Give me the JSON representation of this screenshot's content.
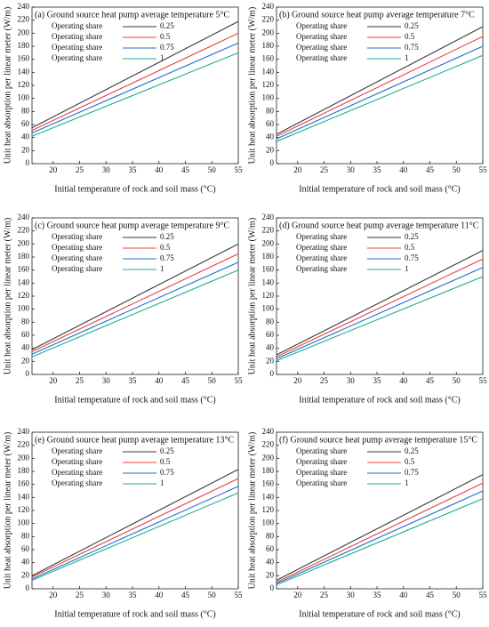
{
  "chart_data": [
    {
      "type": "line",
      "title": "(a) Ground source heat pump average temperature 5°C",
      "xlabel": "Initial temperature of rock and soil mass (°C)",
      "ylabel": "Unit heat absorption per linear meter (W/m)",
      "x": [
        16,
        55
      ],
      "xlim": [
        16,
        55
      ],
      "ylim": [
        0,
        240
      ],
      "xticks": [
        20,
        25,
        30,
        35,
        40,
        45,
        50,
        55
      ],
      "yticks": [
        0,
        20,
        40,
        60,
        80,
        100,
        120,
        140,
        160,
        180,
        200,
        220,
        240
      ],
      "series": [
        {
          "name": "Operating share",
          "share": 0.25,
          "color": "#3a3a3a",
          "values": [
            55,
            218
          ]
        },
        {
          "name": "Operating share",
          "share": 0.5,
          "color": "#e8433a",
          "values": [
            51,
            200
          ]
        },
        {
          "name": "Operating share",
          "share": 0.75,
          "color": "#1f6fd1",
          "values": [
            47,
            185
          ]
        },
        {
          "name": "Operating share",
          "share": 1,
          "color": "#1fae8a",
          "values": [
            42,
            170
          ]
        }
      ]
    },
    {
      "type": "line",
      "title": "(b) Ground source heat pump average temperature 7°C",
      "xlabel": "Initial temperature of rock and soil mass (°C)",
      "ylabel": "Unit heat absorption per linear meter (W/m)",
      "x": [
        16,
        55
      ],
      "xlim": [
        16,
        55
      ],
      "ylim": [
        0,
        240
      ],
      "xticks": [
        20,
        25,
        30,
        35,
        40,
        45,
        50,
        55
      ],
      "yticks": [
        0,
        20,
        40,
        60,
        80,
        100,
        120,
        140,
        160,
        180,
        200,
        220,
        240
      ],
      "series": [
        {
          "name": "Operating share",
          "share": 0.25,
          "color": "#3a3a3a",
          "values": [
            45,
            210
          ]
        },
        {
          "name": "Operating share",
          "share": 0.5,
          "color": "#e8433a",
          "values": [
            42,
            195
          ]
        },
        {
          "name": "Operating share",
          "share": 0.75,
          "color": "#1f6fd1",
          "values": [
            38,
            180
          ]
        },
        {
          "name": "Operating share",
          "share": 1,
          "color": "#1fae8a",
          "values": [
            34,
            166
          ]
        }
      ]
    },
    {
      "type": "line",
      "title": "(c) Ground source heat pump average temperature 9°C",
      "xlabel": "Initial temperature of rock and soil mass (°C)",
      "ylabel": "Unit heat absorption per linear meter (W/m)",
      "x": [
        16,
        55
      ],
      "xlim": [
        16,
        55
      ],
      "ylim": [
        0,
        240
      ],
      "xticks": [
        20,
        25,
        30,
        35,
        40,
        45,
        50,
        55
      ],
      "yticks": [
        0,
        20,
        40,
        60,
        80,
        100,
        120,
        140,
        160,
        180,
        200,
        220,
        240
      ],
      "series": [
        {
          "name": "Operating share",
          "share": 0.25,
          "color": "#3a3a3a",
          "values": [
            38,
            200
          ]
        },
        {
          "name": "Operating share",
          "share": 0.5,
          "color": "#e8433a",
          "values": [
            35,
            185
          ]
        },
        {
          "name": "Operating share",
          "share": 0.75,
          "color": "#1f6fd1",
          "values": [
            31,
            172
          ]
        },
        {
          "name": "Operating share",
          "share": 1,
          "color": "#1fae8a",
          "values": [
            27,
            160
          ]
        }
      ]
    },
    {
      "type": "line",
      "title": "(d) Ground source heat pump average temperature 11°C",
      "xlabel": "Initial temperature of rock and soil mass (°C)",
      "ylabel": "Unit heat absorption per linear meter (W/m)",
      "x": [
        16,
        55
      ],
      "xlim": [
        16,
        55
      ],
      "ylim": [
        0,
        240
      ],
      "xticks": [
        20,
        25,
        30,
        35,
        40,
        45,
        50,
        55
      ],
      "yticks": [
        0,
        20,
        40,
        60,
        80,
        100,
        120,
        140,
        160,
        180,
        200,
        220,
        240
      ],
      "series": [
        {
          "name": "Operating share",
          "share": 0.25,
          "color": "#3a3a3a",
          "values": [
            30,
            190
          ]
        },
        {
          "name": "Operating share",
          "share": 0.5,
          "color": "#e8433a",
          "values": [
            27,
            177
          ]
        },
        {
          "name": "Operating share",
          "share": 0.75,
          "color": "#1f6fd1",
          "values": [
            24,
            164
          ]
        },
        {
          "name": "Operating share",
          "share": 1,
          "color": "#1fae8a",
          "values": [
            21,
            150
          ]
        }
      ]
    },
    {
      "type": "line",
      "title": "(e) Ground source heat pump average temperature 13°C",
      "xlabel": "Initial temperature of rock and soil mass (°C)",
      "ylabel": "Unit heat absorption per linear meter (W/m)",
      "x": [
        16,
        55
      ],
      "xlim": [
        16,
        55
      ],
      "ylim": [
        0,
        240
      ],
      "xticks": [
        20,
        25,
        30,
        35,
        40,
        45,
        50,
        55
      ],
      "yticks": [
        0,
        20,
        40,
        60,
        80,
        100,
        120,
        140,
        160,
        180,
        200,
        220,
        240
      ],
      "series": [
        {
          "name": "Operating share",
          "share": 0.25,
          "color": "#3a3a3a",
          "values": [
            20,
            183
          ]
        },
        {
          "name": "Operating share",
          "share": 0.5,
          "color": "#e8433a",
          "values": [
            18,
            169
          ]
        },
        {
          "name": "Operating share",
          "share": 0.75,
          "color": "#1f6fd1",
          "values": [
            15,
            157
          ]
        },
        {
          "name": "Operating share",
          "share": 1,
          "color": "#1fae8a",
          "values": [
            13,
            147
          ]
        }
      ]
    },
    {
      "type": "line",
      "title": "(f) Ground source heat pump average temperature 15°C",
      "xlabel": "Initial temperature of rock and soil mass (°C)",
      "ylabel": "Unit heat absorption per linear meter (W/m)",
      "x": [
        16,
        55
      ],
      "xlim": [
        16,
        55
      ],
      "ylim": [
        0,
        240
      ],
      "xticks": [
        20,
        25,
        30,
        35,
        40,
        45,
        50,
        55
      ],
      "yticks": [
        0,
        20,
        40,
        60,
        80,
        100,
        120,
        140,
        160,
        180,
        200,
        220,
        240
      ],
      "series": [
        {
          "name": "Operating share",
          "share": 0.25,
          "color": "#3a3a3a",
          "values": [
            13,
            175
          ]
        },
        {
          "name": "Operating share",
          "share": 0.5,
          "color": "#e8433a",
          "values": [
            10,
            162
          ]
        },
        {
          "name": "Operating share",
          "share": 0.75,
          "color": "#1f6fd1",
          "values": [
            8,
            150
          ]
        },
        {
          "name": "Operating share",
          "share": 1,
          "color": "#1fae8a",
          "values": [
            6,
            138
          ]
        }
      ]
    }
  ]
}
